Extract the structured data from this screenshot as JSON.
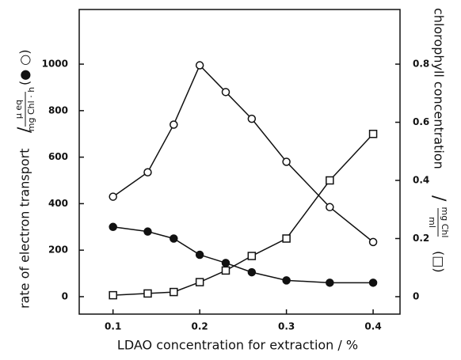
{
  "chart_data": {
    "type": "line",
    "x_label": "LDAO concentration for extraction / %",
    "y_label": "rate of electron transport",
    "y_unit_numerator": "μ eq",
    "y_unit_denominator": "mg Chl · h",
    "y_markers": "(● ○)",
    "y2_label": "chlorophyll concentration",
    "y2_unit_numerator": "mg Chl",
    "y2_unit_denominator": "ml",
    "y2_markers": "(□)",
    "x": [
      0.1,
      0.14,
      0.17,
      0.2,
      0.23,
      0.26,
      0.3,
      0.35,
      0.4
    ],
    "series": [
      {
        "marker": "open-circle",
        "color": "#111111",
        "values": [
          430,
          535,
          740,
          995,
          880,
          765,
          580,
          385,
          235
        ]
      },
      {
        "marker": "filled-circle",
        "color": "#111111",
        "values": [
          300,
          280,
          250,
          180,
          145,
          105,
          70,
          60,
          60
        ]
      },
      {
        "marker": "open-square",
        "color": "#111111",
        "axis": "y2",
        "values": [
          0.005,
          0.011,
          0.016,
          0.05,
          0.09,
          0.14,
          0.2,
          0.4,
          0.56
        ]
      }
    ],
    "xlim": [
      0.061,
      0.431
    ],
    "xticks": [
      0.1,
      0.2,
      0.3,
      0.4
    ],
    "ylim": [
      -75,
      1235
    ],
    "yticks": [
      0,
      200,
      400,
      600,
      800,
      1000
    ],
    "y2lim": [
      -0.06,
      0.988
    ],
    "y2ticks": [
      0,
      0.2,
      0.4,
      0.6,
      0.8
    ],
    "grid": false
  }
}
